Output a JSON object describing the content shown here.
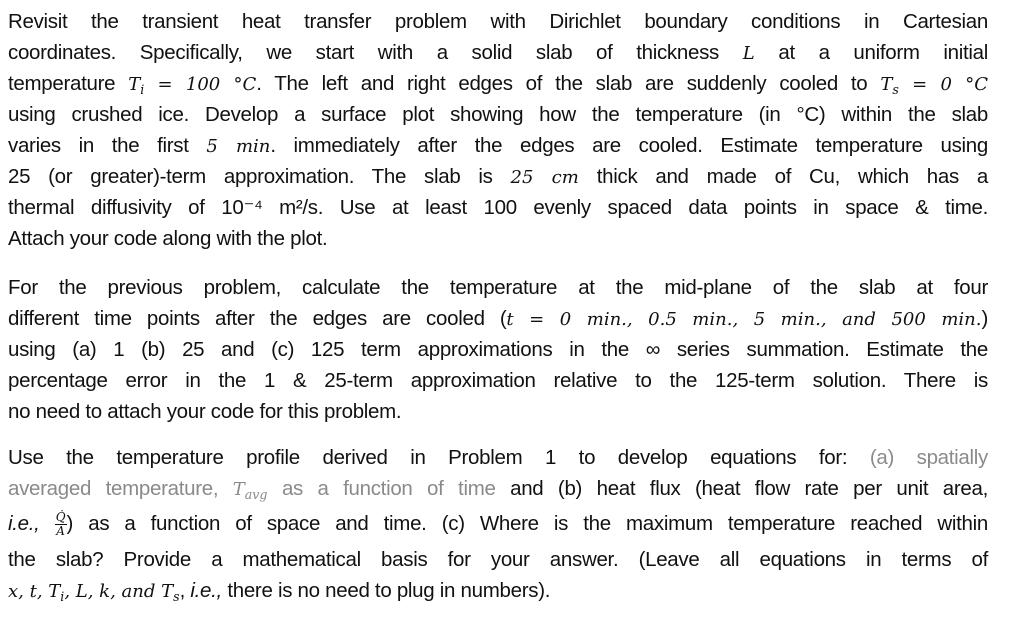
{
  "paragraphs": [
    {
      "id": "problem-1",
      "lines": [
        [
          {
            "t": "Revisit the transient heat transfer problem with Dirichlet boundary conditions in Cartesian"
          }
        ],
        [
          {
            "t": "coordinates. Specifically, we start with a solid slab of thickness "
          },
          {
            "t": "L",
            "s": "m"
          },
          {
            "t": " at a uniform initial"
          }
        ],
        [
          {
            "t": "temperature "
          },
          {
            "t": "T",
            "sub": "i",
            "s": "m"
          },
          {
            "t": " = 100 °C",
            "s": "m"
          },
          {
            "t": ". The left and right edges of the slab are suddenly cooled to "
          },
          {
            "t": "T",
            "sub": "s",
            "s": "m"
          },
          {
            "t": " = 0 °C",
            "s": "m"
          }
        ],
        [
          {
            "t": "using crushed ice. Develop a surface plot showing how the temperature (in °C) within the slab"
          }
        ],
        [
          {
            "t": "varies in the first "
          },
          {
            "t": "5 min",
            "s": "m"
          },
          {
            "t": ". immediately after the edges are cooled. Estimate temperature using"
          }
        ],
        [
          {
            "t": "25 (or greater)-term approximation. The slab is "
          },
          {
            "t": "25 cm",
            "s": "m"
          },
          {
            "t": " thick and made of Cu, which has a"
          }
        ],
        [
          {
            "t": "thermal diffusivity of 10⁻⁴ m²/s. Use at least 100 evenly spaced data points in space & time."
          }
        ],
        [
          {
            "t": "Attach your code along with the plot."
          }
        ]
      ]
    },
    {
      "id": "problem-2",
      "lines": [
        [
          {
            "t": "For the previous problem, calculate the temperature at the mid-plane of the slab at four"
          }
        ],
        [
          {
            "t": "different time points after the edges are cooled ("
          },
          {
            "t": "t = 0 min., 0.5 min., 5 min., and 500 min.",
            "s": "m"
          },
          {
            "t": ")"
          }
        ],
        [
          {
            "t": "using (a) 1 (b) 25 and (c) 125 term approximations in the ∞ series summation. Estimate the"
          }
        ],
        [
          {
            "t": "percentage error in the 1 & 25-term approximation relative to the 125-term solution. There is"
          }
        ],
        [
          {
            "t": "no need to attach your code for this problem."
          }
        ]
      ]
    },
    {
      "id": "problem-3",
      "lines": [
        [
          {
            "t": "Use the temperature profile derived in Problem 1 to develop equations for: "
          },
          {
            "t": "(a) spatially",
            "s": "g"
          }
        ],
        [
          {
            "t": "averaged temperature, ",
            "s": "g"
          },
          {
            "t": "T",
            "sub": "avg",
            "s": "m g"
          },
          {
            "t": " as a function of time",
            "s": "g"
          },
          {
            "t": " and (b) heat flux (heat flow rate per unit area,"
          }
        ],
        [
          {
            "t": "i.e.,",
            "s": "i"
          },
          {
            "t": " "
          },
          {
            "frac": [
              "Q̇",
              "A"
            ]
          },
          {
            "t": ") as a function of space and time. (c) Where is the maximum temperature reached within"
          }
        ],
        [
          {
            "t": "the slab? Provide a mathematical basis for your answer. (Leave all equations in terms of"
          }
        ],
        [
          {
            "t": "x, t, ",
            "s": "m"
          },
          {
            "t": "T",
            "sub": "i",
            "s": "m"
          },
          {
            "t": ", L, k, and ",
            "s": "m"
          },
          {
            "t": "T",
            "sub": "s",
            "s": "m"
          },
          {
            "t": ", "
          },
          {
            "t": "i.e.,",
            "s": "i"
          },
          {
            "t": " there is no need to plug in numbers)."
          }
        ]
      ]
    }
  ]
}
